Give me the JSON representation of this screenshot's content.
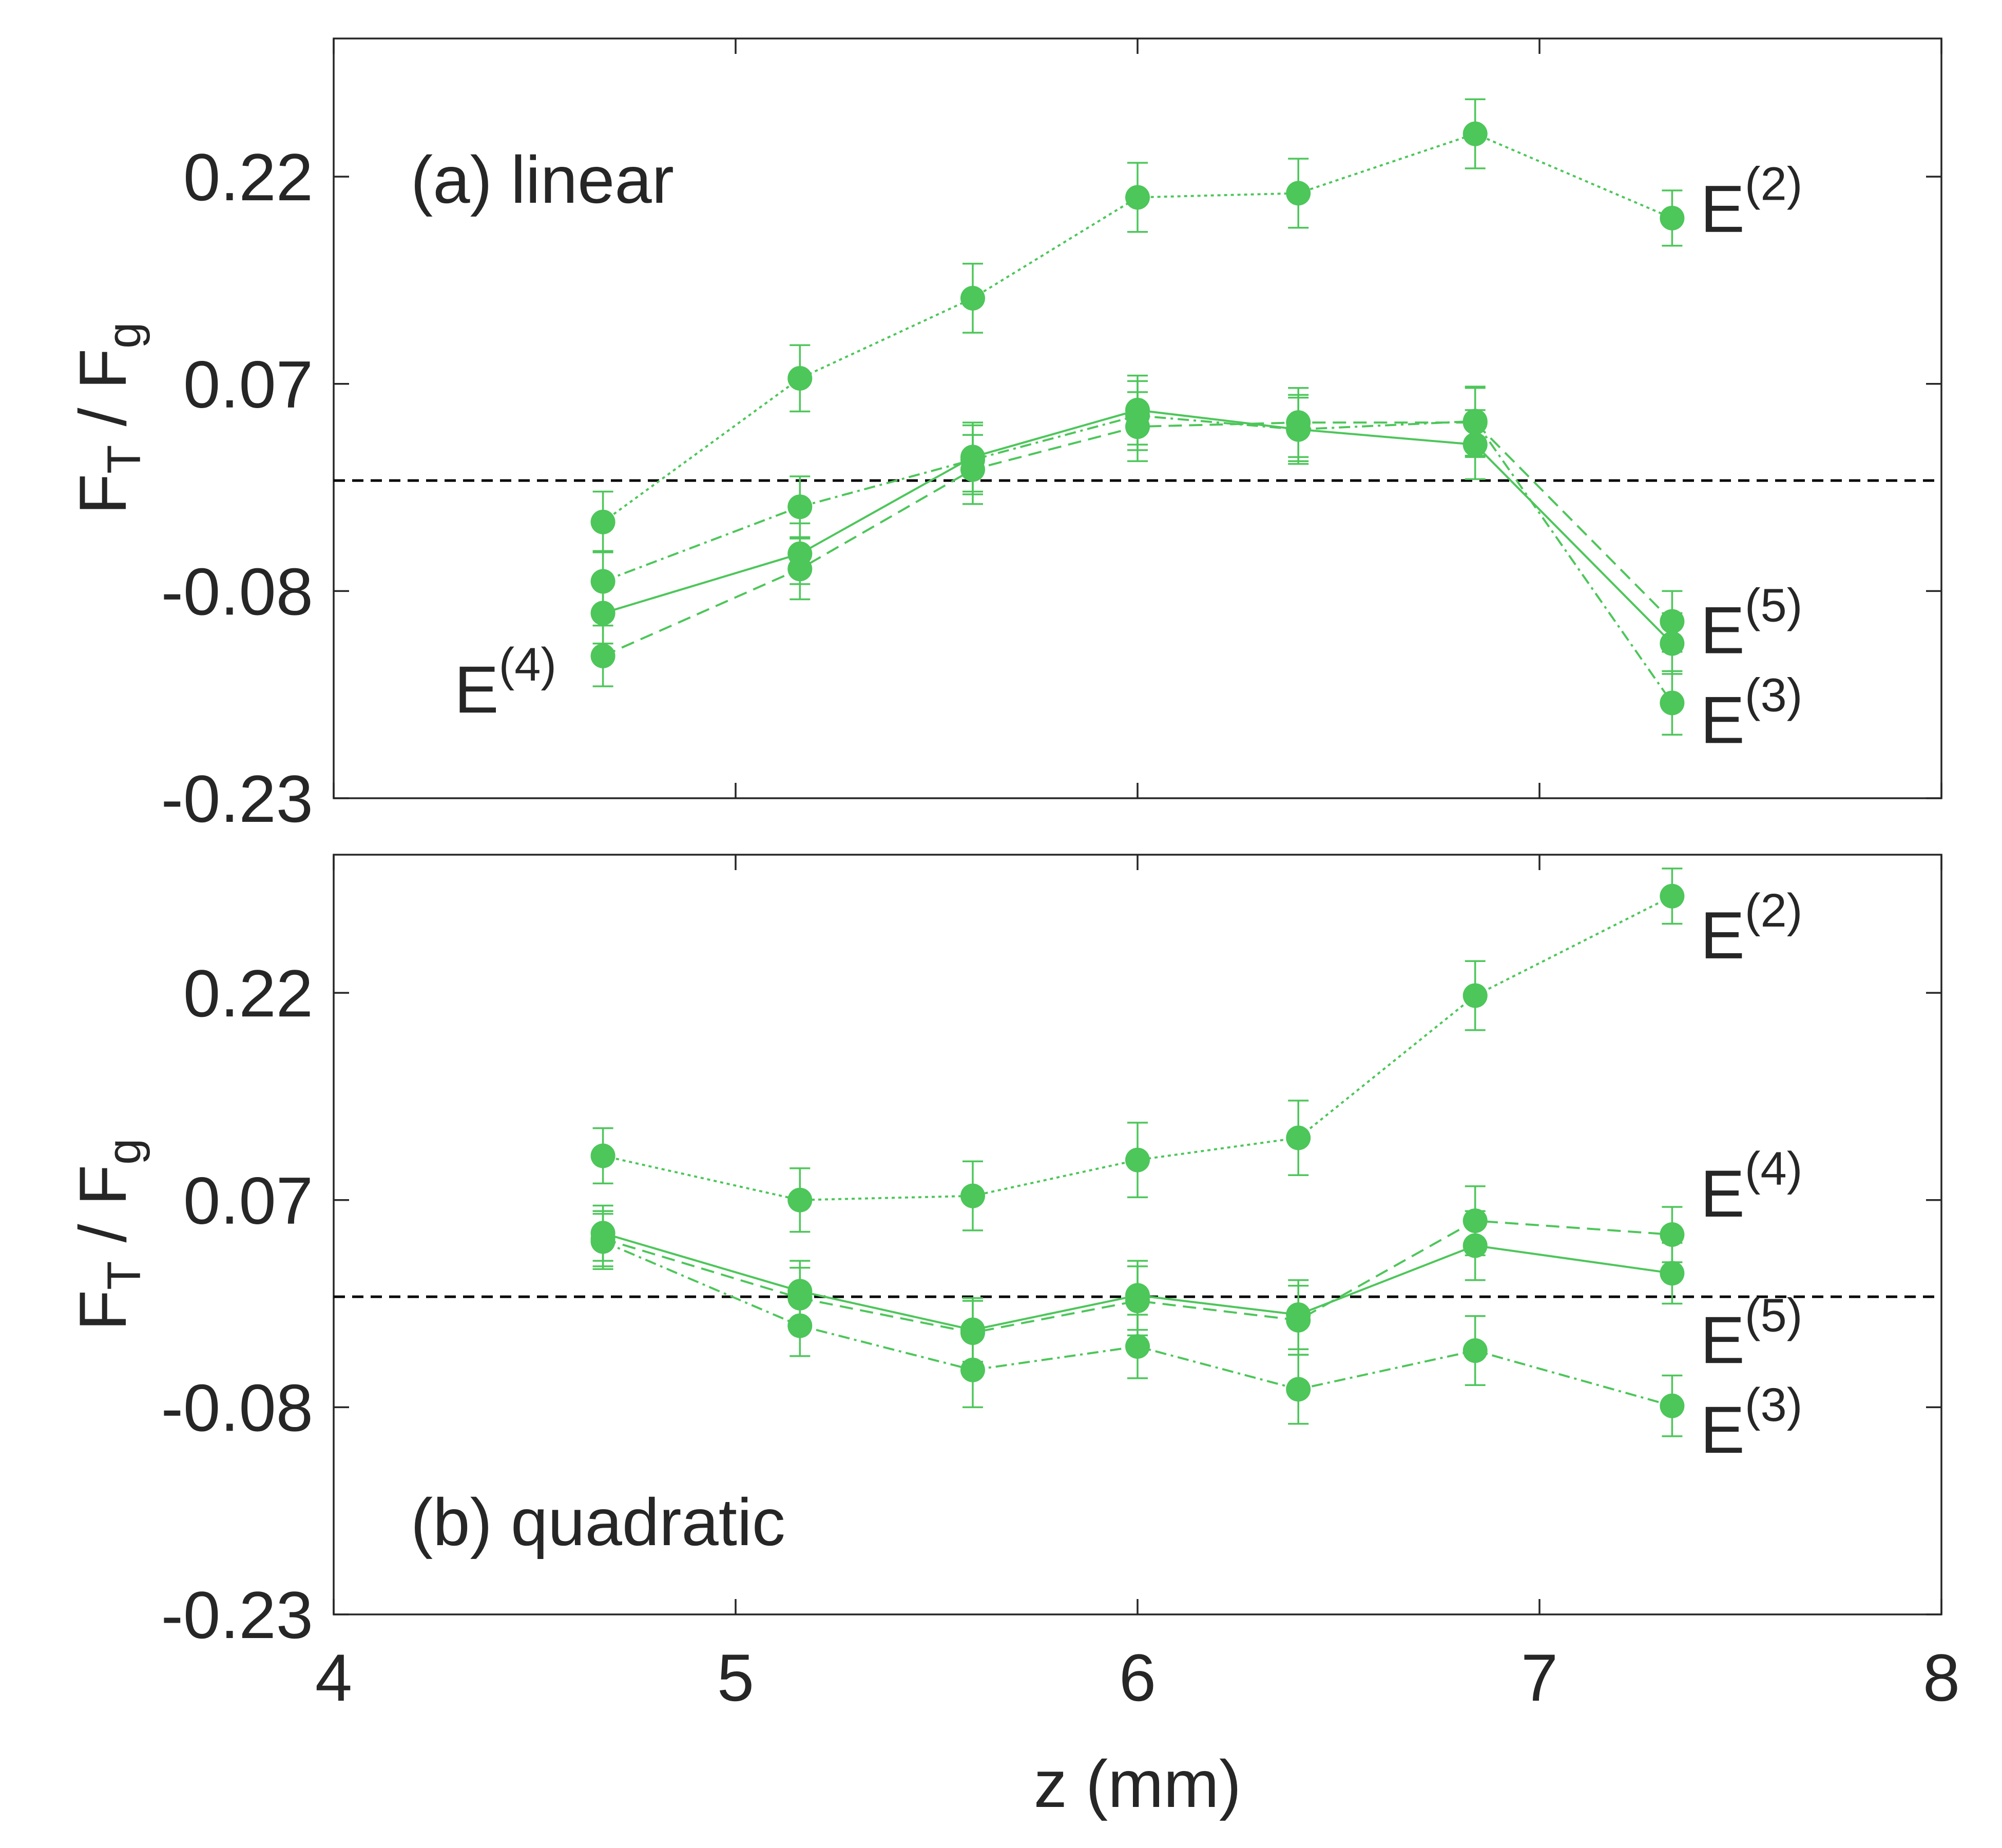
{
  "colors": {
    "series": "#4dc65a",
    "axis": "#262626",
    "zero_line": "#000000"
  },
  "chart_data": [
    {
      "type": "line",
      "panel": "top",
      "label": "(a) linear",
      "ylabel": {
        "main": "F",
        "sub1": "T",
        "mid": " / F",
        "sub2": "g"
      },
      "xlabel": "",
      "xlim": [
        4,
        8
      ],
      "ylim": [
        -0.23,
        0.32
      ],
      "xticks": [
        4,
        5,
        6,
        7,
        8
      ],
      "yticks": [
        -0.23,
        -0.08,
        0.07,
        0.22
      ],
      "ytick_labels": [
        "-0.23",
        "-0.08",
        "0.07",
        "0.22"
      ],
      "show_xtick_labels": false,
      "reference_line_y": 0.0,
      "x": [
        4.67,
        5.16,
        5.59,
        6.0,
        6.4,
        6.84,
        7.33
      ],
      "series": [
        {
          "name": "E(2)",
          "dash": "dotted",
          "values": [
            -0.03,
            0.074,
            0.132,
            0.205,
            0.208,
            0.251,
            0.19
          ],
          "err": [
            0.022,
            0.024,
            0.025,
            0.025,
            0.025,
            0.025,
            0.02
          ]
        },
        {
          "name": "E(3)",
          "dash": "dashdot",
          "values": [
            -0.073,
            -0.019,
            0.015,
            0.047,
            0.037,
            0.043,
            -0.161
          ],
          "err": [
            0.022,
            0.022,
            0.025,
            0.025,
            0.023,
            0.025,
            0.023
          ]
        },
        {
          "name": "E(4)",
          "dash": "dashed",
          "values": [
            -0.127,
            -0.064,
            0.008,
            0.039,
            0.042,
            0.042,
            -0.102
          ],
          "err": [
            0.022,
            0.022,
            0.025,
            0.025,
            0.025,
            0.025,
            0.022
          ]
        },
        {
          "name": "E(5)",
          "dash": "solid",
          "values": [
            -0.096,
            -0.053,
            0.017,
            0.051,
            0.037,
            0.026,
            -0.118
          ],
          "err": [
            0.022,
            0.022,
            0.025,
            0.025,
            0.025,
            0.025,
            0.022
          ]
        }
      ],
      "annotations": [
        {
          "base": "E",
          "sup": "(2)",
          "x": 7.4,
          "y": 0.18
        },
        {
          "base": "E",
          "sup": "(5)",
          "x": 7.4,
          "y": -0.125
        },
        {
          "base": "E",
          "sup": "(3)",
          "x": 7.4,
          "y": -0.19
        },
        {
          "base": "E",
          "sup": "(4)",
          "x": 4.3,
          "y": -0.168
        }
      ]
    },
    {
      "type": "line",
      "panel": "bottom",
      "label": "(b) quadratic",
      "ylabel": {
        "main": "F",
        "sub1": "T",
        "mid": " / F",
        "sub2": "g"
      },
      "xlabel": "z (mm)",
      "xlim": [
        4,
        8
      ],
      "ylim": [
        -0.23,
        0.32
      ],
      "xticks": [
        4,
        5,
        6,
        7,
        8
      ],
      "xtick_labels": [
        "4",
        "5",
        "6",
        "7",
        "8"
      ],
      "yticks": [
        -0.23,
        -0.08,
        0.07,
        0.22
      ],
      "ytick_labels": [
        "-0.23",
        "-0.08",
        "0.07",
        "0.22"
      ],
      "show_xtick_labels": true,
      "reference_line_y": 0.0,
      "x": [
        4.67,
        5.16,
        5.59,
        6.0,
        6.4,
        6.84,
        7.33
      ],
      "series": [
        {
          "name": "E(2)",
          "dash": "dotted",
          "values": [
            0.102,
            0.07,
            0.073,
            0.099,
            0.115,
            0.218,
            0.29
          ],
          "err": [
            0.02,
            0.023,
            0.025,
            0.027,
            0.027,
            0.025,
            0.02
          ]
        },
        {
          "name": "E(3)",
          "dash": "dashdot",
          "values": [
            0.04,
            -0.021,
            -0.053,
            -0.036,
            -0.067,
            -0.039,
            -0.079
          ],
          "err": [
            0.02,
            0.022,
            0.027,
            0.023,
            0.025,
            0.025,
            0.022
          ]
        },
        {
          "name": "E(4)",
          "dash": "dashed",
          "values": [
            0.042,
            -0.001,
            -0.026,
            -0.003,
            -0.017,
            0.055,
            0.045
          ],
          "err": [
            0.02,
            0.022,
            0.023,
            0.025,
            0.025,
            0.025,
            0.02
          ]
        },
        {
          "name": "E(5)",
          "dash": "solid",
          "values": [
            0.046,
            0.004,
            -0.024,
            0.001,
            -0.013,
            0.037,
            0.017
          ],
          "err": [
            0.02,
            0.022,
            0.023,
            0.025,
            0.025,
            0.025,
            0.022
          ]
        }
      ],
      "annotations": [
        {
          "base": "E",
          "sup": "(2)",
          "x": 7.4,
          "y": 0.245
        },
        {
          "base": "E",
          "sup": "(4)",
          "x": 7.4,
          "y": 0.058
        },
        {
          "base": "E",
          "sup": "(5)",
          "x": 7.4,
          "y": -0.048
        },
        {
          "base": "E",
          "sup": "(3)",
          "x": 7.4,
          "y": -0.113
        }
      ]
    }
  ]
}
